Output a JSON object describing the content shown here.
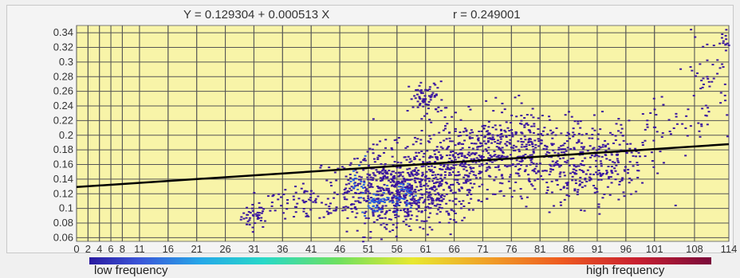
{
  "chart_data": {
    "type": "scatter",
    "title": "Y = 0.129304 + 0.000513 X",
    "correlation_label": "r = 0.249001",
    "regression": {
      "intercept": 0.129304,
      "slope": 0.000513
    },
    "xlim": [
      0,
      114
    ],
    "ylim": [
      0.055,
      0.35
    ],
    "x_ticks": [
      0,
      2,
      4,
      6,
      8,
      11,
      16,
      21,
      26,
      31,
      36,
      41,
      46,
      51,
      56,
      61,
      66,
      71,
      76,
      81,
      86,
      91,
      96,
      101,
      108,
      114
    ],
    "x_tick_labels": [
      "0",
      "2",
      "4",
      "6",
      "8",
      "11",
      "16",
      "21",
      "26",
      "31",
      "36",
      "41",
      "46",
      "51",
      "56",
      "61",
      "66",
      "71",
      "76",
      "81",
      "86",
      "91",
      "96",
      "101",
      "108",
      "114"
    ],
    "y_ticks": [
      0.06,
      0.08,
      0.1,
      0.12,
      0.14,
      0.16,
      0.18,
      0.2,
      0.22,
      0.24,
      0.26,
      0.28,
      0.3,
      0.32,
      0.34
    ],
    "y_tick_labels": [
      "0.06",
      "0.08",
      "0.1",
      "0.12",
      "0.14",
      "0.16",
      "0.18",
      "0.2",
      "0.22",
      "0.24",
      "0.26",
      "0.28",
      "0.3",
      "0.32",
      "0.34"
    ],
    "grid": true,
    "background_color": "#f8f4a8",
    "point_color": "#3a16a0",
    "dense_color": "#2a60e0",
    "line_color": "#000000",
    "clusters": [
      {
        "x": 31,
        "y": 0.09,
        "sx": 1.2,
        "sy": 0.008,
        "n": 40
      },
      {
        "x": 36,
        "y": 0.11,
        "sx": 2.5,
        "sy": 0.01,
        "n": 30
      },
      {
        "x": 41,
        "y": 0.105,
        "sx": 2.5,
        "sy": 0.012,
        "n": 40
      },
      {
        "x": 47,
        "y": 0.13,
        "sx": 2.0,
        "sy": 0.025,
        "n": 60
      },
      {
        "x": 53,
        "y": 0.125,
        "sx": 3.0,
        "sy": 0.03,
        "n": 260
      },
      {
        "x": 58,
        "y": 0.12,
        "sx": 3.0,
        "sy": 0.02,
        "n": 220
      },
      {
        "x": 62,
        "y": 0.14,
        "sx": 3.5,
        "sy": 0.03,
        "n": 220
      },
      {
        "x": 61,
        "y": 0.25,
        "sx": 1.5,
        "sy": 0.012,
        "n": 70
      },
      {
        "x": 67,
        "y": 0.16,
        "sx": 4.0,
        "sy": 0.03,
        "n": 200
      },
      {
        "x": 73,
        "y": 0.18,
        "sx": 4.0,
        "sy": 0.025,
        "n": 200
      },
      {
        "x": 79,
        "y": 0.19,
        "sx": 4.0,
        "sy": 0.025,
        "n": 160
      },
      {
        "x": 85,
        "y": 0.15,
        "sx": 4.5,
        "sy": 0.025,
        "n": 150
      },
      {
        "x": 90,
        "y": 0.17,
        "sx": 4.0,
        "sy": 0.03,
        "n": 110
      },
      {
        "x": 96,
        "y": 0.17,
        "sx": 3.0,
        "sy": 0.03,
        "n": 70
      },
      {
        "x": 104,
        "y": 0.22,
        "sx": 3.5,
        "sy": 0.025,
        "n": 40
      },
      {
        "x": 110,
        "y": 0.28,
        "sx": 2.0,
        "sy": 0.03,
        "n": 45
      },
      {
        "x": 113,
        "y": 0.33,
        "sx": 0.6,
        "sy": 0.01,
        "n": 12
      }
    ],
    "dense_spots": [
      {
        "x": 52,
        "y": 0.11,
        "sx": 1.2,
        "sy": 0.008,
        "n": 40
      },
      {
        "x": 57,
        "y": 0.12,
        "sx": 1.2,
        "sy": 0.008,
        "n": 30
      },
      {
        "x": 49,
        "y": 0.14,
        "sx": 0.8,
        "sy": 0.012,
        "n": 20
      }
    ]
  },
  "legend": {
    "low_label": "low frequency",
    "high_label": "high frequency"
  }
}
